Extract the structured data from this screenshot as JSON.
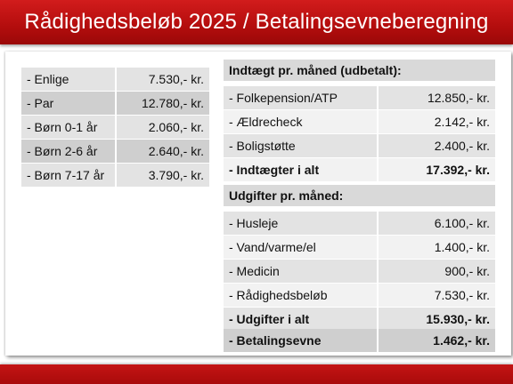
{
  "title": "Rådighedsbeløb 2025 / Betalingsevneberegning",
  "left_table": [
    {
      "label": "- Enlige",
      "value": "7.530,- kr."
    },
    {
      "label": "- Par",
      "value": "12.780,- kr."
    },
    {
      "label": "- Børn 0-1 år",
      "value": "2.060,- kr."
    },
    {
      "label": "- Børn 2-6 år",
      "value": "2.640,- kr."
    },
    {
      "label": "- Børn 7-17 år",
      "value": "3.790,- kr."
    }
  ],
  "income": {
    "heading": "Indtægt pr. måned (udbetalt):",
    "rows": [
      {
        "label": "- Folkepension/ATP",
        "value": "12.850,- kr."
      },
      {
        "label": "- Ældrecheck",
        "value": "2.142,- kr."
      },
      {
        "label": "- Boligstøtte",
        "value": "2.400,- kr."
      }
    ],
    "total": {
      "label": "- Indtægter i alt",
      "value": "17.392,- kr."
    }
  },
  "expenses": {
    "heading": "Udgifter pr. måned:",
    "rows": [
      {
        "label": "- Husleje",
        "value": "6.100,- kr."
      },
      {
        "label": "- Vand/varme/el",
        "value": "1.400,- kr."
      },
      {
        "label": "- Medicin",
        "value": "900,- kr."
      },
      {
        "label": "- Rådighedsbeløb",
        "value": "7.530,- kr."
      }
    ],
    "total": {
      "label": "- Udgifter i alt",
      "value": "15.930,- kr."
    }
  },
  "result": {
    "label": "- Betalingsevne",
    "value": "1.462,- kr."
  }
}
